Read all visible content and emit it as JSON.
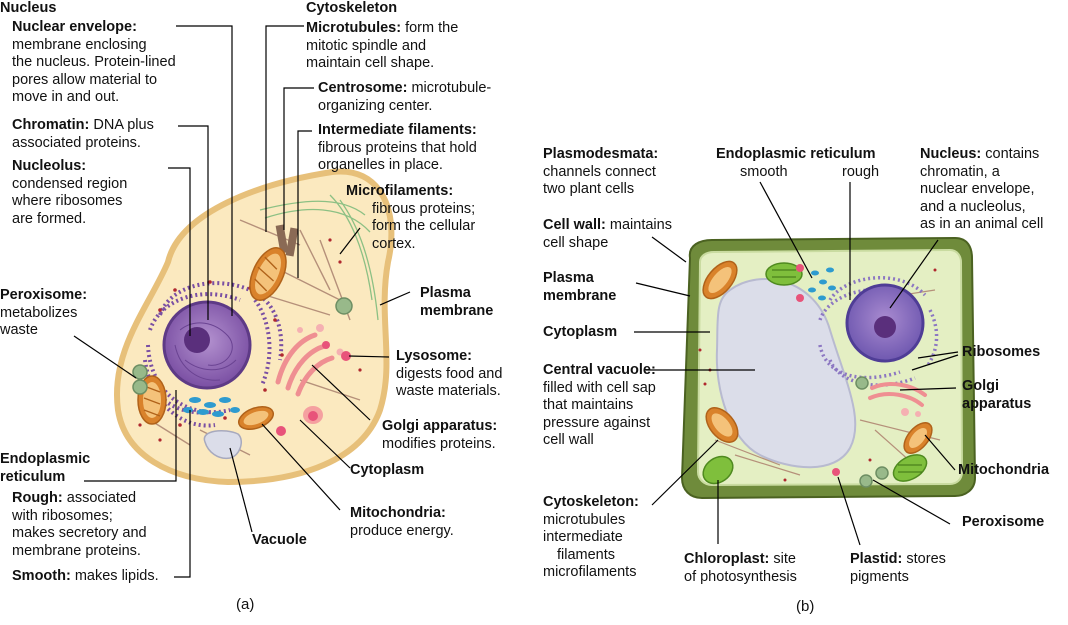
{
  "animal": {
    "caption": "(a)",
    "nucleus_heading": "Nucleus",
    "envelope": {
      "term": "Nuclear envelope:",
      "lines": [
        "membrane enclosing",
        "the nucleus. Protein-lined",
        "pores allow material to",
        "move in and out."
      ]
    },
    "chromatin": {
      "term": "Chromatin:",
      "desc": "DNA plus",
      "lines": [
        "associated proteins."
      ]
    },
    "nucleolus": {
      "term": "Nucleolus:",
      "lines": [
        "condensed region",
        "where ribosomes",
        "are formed."
      ]
    },
    "peroxisome": {
      "term": "Peroxisome:",
      "lines": [
        "metabolizes",
        "waste"
      ]
    },
    "er": {
      "term1": "Endoplasmic",
      "term2": "reticulum"
    },
    "rough": {
      "term": "Rough:",
      "desc": "associated",
      "lines": [
        "with ribosomes;",
        "makes secretory and",
        "membrane proteins."
      ]
    },
    "smooth": {
      "term": "Smooth:",
      "desc": "makes lipids."
    },
    "vacuole": {
      "term": "Vacuole"
    },
    "cytoskeleton_heading": "Cytoskeleton",
    "microtubules": {
      "term": "Microtubules:",
      "desc": "form the",
      "lines": [
        "mitotic spindle and",
        "maintain cell shape."
      ]
    },
    "centrosome": {
      "term": "Centrosome:",
      "desc": "microtubule-",
      "lines": [
        "organizing center."
      ]
    },
    "intermediate": {
      "term": "Intermediate filaments:",
      "lines": [
        "fibrous proteins that hold",
        "organelles in place."
      ]
    },
    "microfilaments": {
      "term": "Microfilaments:",
      "lines": [
        "fibrous proteins;",
        "form the cellular",
        "cortex."
      ]
    },
    "plasma": {
      "term1": "Plasma",
      "term2": "membrane"
    },
    "lysosome": {
      "term": "Lysosome:",
      "lines": [
        "digests food and",
        "waste materials."
      ]
    },
    "golgi": {
      "term": "Golgi apparatus:",
      "lines": [
        "modifies proteins."
      ]
    },
    "cytoplasm": {
      "term": "Cytoplasm"
    },
    "mito": {
      "term": "Mitochondria:",
      "lines": [
        "produce energy."
      ]
    }
  },
  "plant": {
    "caption": "(b)",
    "plasmodesmata": {
      "term": "Plasmodesmata:",
      "lines": [
        "channels connect",
        "two plant cells"
      ]
    },
    "er": {
      "term": "Endoplasmic reticulum",
      "smooth": "smooth",
      "rough": "rough"
    },
    "nucleus": {
      "term": "Nucleus:",
      "desc": "contains",
      "lines": [
        "chromatin, a",
        "nuclear envelope,",
        "and a nucleolus,",
        "as in an animal cell"
      ]
    },
    "cellwall": {
      "term": "Cell wall:",
      "desc": "maintains",
      "lines": [
        "cell shape"
      ]
    },
    "plasma": {
      "term1": "Plasma",
      "term2": "membrane"
    },
    "cytoplasm": {
      "term": "Cytoplasm"
    },
    "vacuole": {
      "term": "Central vacuole:",
      "lines": [
        "filled with cell sap",
        "that maintains",
        "pressure against",
        "cell wall"
      ]
    },
    "ribosomes": {
      "term": "Ribosomes"
    },
    "golgi": {
      "term1": "Golgi",
      "term2": "apparatus"
    },
    "mito": {
      "term": "Mitochondria"
    },
    "peroxisome": {
      "term": "Peroxisome"
    },
    "cytoskeleton": {
      "term": "Cytoskeleton:",
      "lines": [
        "microtubules",
        "intermediate",
        "filaments",
        "microfilaments"
      ]
    },
    "chloroplast": {
      "term": "Chloroplast:",
      "desc": "site",
      "lines": [
        "of photosynthesis"
      ]
    },
    "plastid": {
      "term": "Plastid:",
      "desc": "stores",
      "lines": [
        "pigments"
      ]
    }
  },
  "colors": {
    "cytoplasm_animal": "#fbe9bf",
    "membrane_animal": "#e7c07a",
    "nucleus": "#8e63b1",
    "nucleolus": "#5a2f7c",
    "er_rough": "#7a4fa3",
    "ribosome": "#b0282e",
    "smooth_er": "#2e9bcf",
    "mito_outer": "#d9822b",
    "golgi": "#ef8f92",
    "lysosome": "#e8537a",
    "peroxisome": "#98b98a",
    "cell_wall": "#6f8b3b",
    "cytoplasm_plant": "#e4efc3",
    "vacuole": "#dbdde9",
    "chloroplast": "#7fbf3c"
  }
}
